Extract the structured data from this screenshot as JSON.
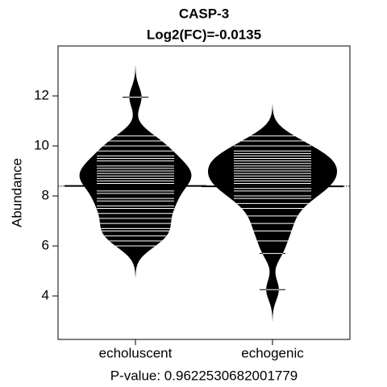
{
  "chart_data": {
    "type": "beanplot",
    "title": "CASP-3",
    "subtitle": "Log2(FC)=-0.0135",
    "ylabel": "Abundance",
    "xlabel": "P-value: 0.9622530682001779",
    "categories": [
      "echoluscent",
      "echogenic"
    ],
    "values": [
      [
        6.0,
        6.2,
        6.4,
        6.6,
        6.7,
        6.9,
        7.1,
        7.3,
        7.5,
        7.6,
        7.8,
        7.9,
        8.1,
        8.2,
        8.4,
        8.5,
        8.6,
        8.7,
        8.8,
        8.9,
        9.0,
        9.1,
        9.2,
        9.4,
        9.5,
        9.6,
        9.8,
        10.0,
        10.2,
        10.4,
        11.95
      ],
      [
        4.25,
        5.7,
        6.2,
        6.6,
        6.9,
        7.2,
        7.5,
        7.7,
        7.9,
        8.0,
        8.2,
        8.3,
        8.4,
        8.5,
        8.6,
        8.7,
        8.8,
        8.9,
        9.0,
        9.1,
        9.2,
        9.3,
        9.4,
        9.5,
        9.6,
        9.7,
        9.8,
        10.0,
        10.2,
        10.4
      ]
    ],
    "color": "#000000",
    "ylim": [
      2.26,
      14
    ],
    "yticks": [
      4,
      6,
      8,
      10,
      12
    ]
  }
}
